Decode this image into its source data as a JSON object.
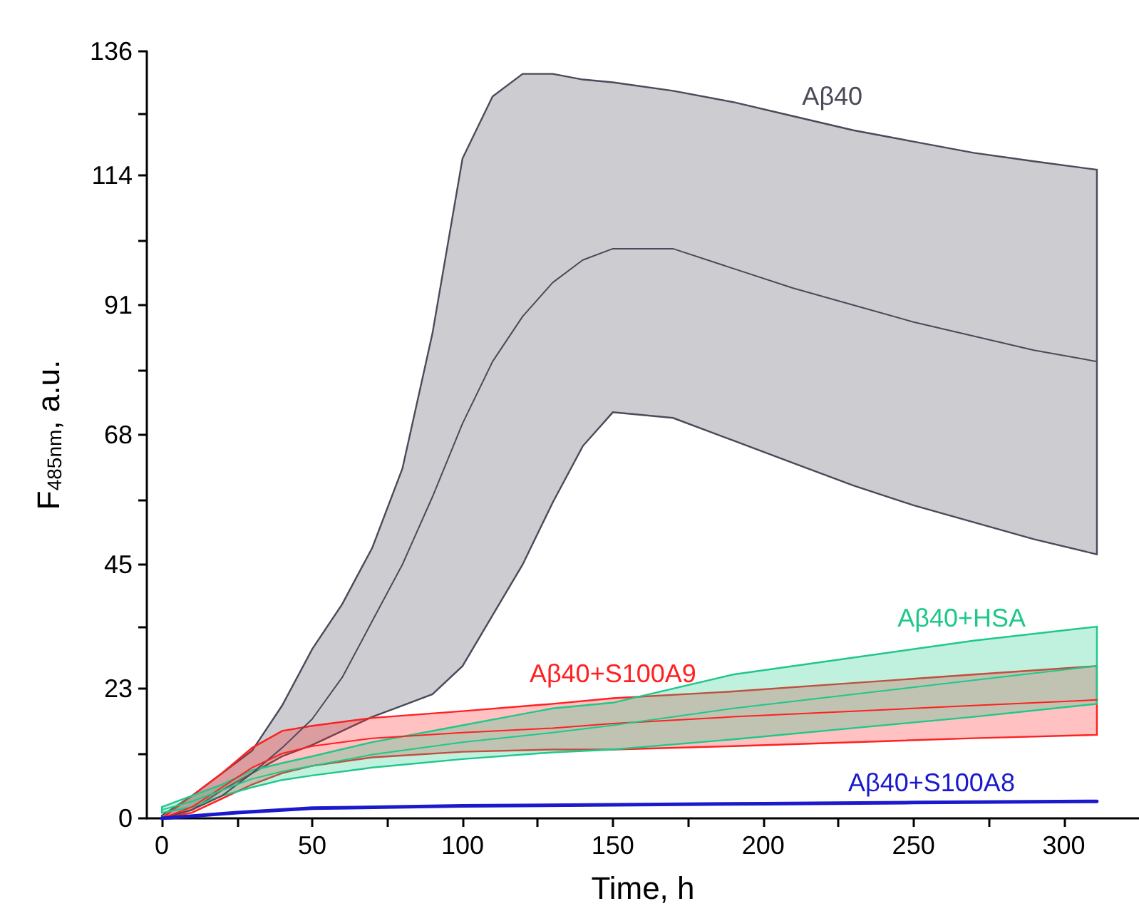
{
  "chart_data": {
    "type": "line",
    "xlabel": "Time, h",
    "ylabel": "F$_{485nm}$, a.u.",
    "xlim": [
      -5,
      325
    ],
    "xticks": [
      0,
      {
        "value": 25,
        "label": null
      },
      50,
      {
        "value": 75,
        "label": null
      },
      100,
      {
        "value": 125,
        "label": null
      },
      150,
      {
        "value": 175,
        "label": null
      },
      200,
      {
        "value": 225,
        "label": null
      },
      250,
      {
        "value": 275,
        "label": null
      },
      300
    ],
    "ylim": [
      0,
      136
    ],
    "yticks": [
      0,
      {
        "value": 11.5,
        "label": null
      },
      23,
      {
        "value": 34,
        "label": null
      },
      45,
      {
        "value": 56.5,
        "label": null
      },
      68,
      {
        "value": 79.5,
        "label": null
      },
      91,
      {
        "value": 102.5,
        "label": null
      },
      114,
      {
        "value": 125,
        "label": null
      },
      136
    ],
    "series": [
      {
        "name": "Aβ40",
        "color": "#4a4a5a",
        "x": [
          0,
          10,
          20,
          30,
          40,
          50,
          60,
          70,
          80,
          90,
          100,
          110,
          120,
          130,
          140,
          150,
          170,
          190,
          210,
          230,
          250,
          270,
          290,
          311
        ],
        "values": [
          0,
          1.5,
          4,
          8,
          12.5,
          17.6,
          25,
          35,
          45,
          57,
          70,
          81,
          89,
          95,
          99,
          101,
          101,
          97.5,
          94,
          91,
          88,
          85.5,
          83,
          81
        ],
        "lower": [
          0,
          1.5,
          5,
          8,
          11,
          13,
          15.5,
          18,
          20,
          22,
          27,
          36,
          45,
          56,
          66,
          72,
          71,
          67,
          63,
          59,
          55.5,
          52.5,
          49.5,
          46.8
        ],
        "upper": [
          0.5,
          4,
          8,
          12,
          20,
          30,
          38,
          48,
          62,
          86,
          117,
          128,
          132,
          132,
          131,
          130.5,
          129,
          127,
          124.5,
          122,
          120,
          118,
          116.5,
          115
        ]
      },
      {
        "name": "Aβ40+S100A9",
        "color": "#ff2020",
        "x": [
          0,
          10,
          20,
          30,
          40,
          50,
          70,
          100,
          130,
          150,
          190,
          230,
          270,
          311
        ],
        "values": [
          0,
          2,
          5.5,
          9,
          11.5,
          12.8,
          14.2,
          15.2,
          16,
          16.8,
          18,
          19,
          20,
          21
        ],
        "lower": [
          0,
          1,
          3.5,
          6,
          8,
          9.3,
          10.8,
          11.8,
          12.2,
          12.2,
          12.8,
          13.5,
          14.2,
          14.8
        ],
        "upper": [
          0,
          4,
          8,
          12.5,
          15.5,
          16.4,
          17.8,
          19,
          20.3,
          21.3,
          22.5,
          24,
          25.5,
          27
        ]
      },
      {
        "name": "Aβ40+HSA",
        "color": "#1ec88a",
        "x": [
          0,
          10,
          20,
          30,
          40,
          50,
          70,
          100,
          130,
          150,
          190,
          230,
          270,
          311
        ],
        "values": [
          1.5,
          3,
          5,
          7,
          8.3,
          9.3,
          11.3,
          13.5,
          15.2,
          16.5,
          19.5,
          22,
          24.5,
          27
        ],
        "lower": [
          1,
          2,
          4,
          5.5,
          6.8,
          7.6,
          9,
          10.5,
          11.7,
          12.2,
          14,
          16,
          18,
          20.3
        ],
        "upper": [
          2,
          4,
          6,
          8.5,
          9.8,
          11,
          13.5,
          16.5,
          19.5,
          20.5,
          25.5,
          28.5,
          31.5,
          34
        ]
      },
      {
        "name": "Aβ40+S100A8",
        "color": "#1a1acc",
        "x": [
          0,
          25,
          50,
          100,
          150,
          200,
          250,
          311
        ],
        "values": [
          0,
          1,
          1.8,
          2.2,
          2.4,
          2.6,
          2.8,
          3
        ]
      }
    ]
  }
}
